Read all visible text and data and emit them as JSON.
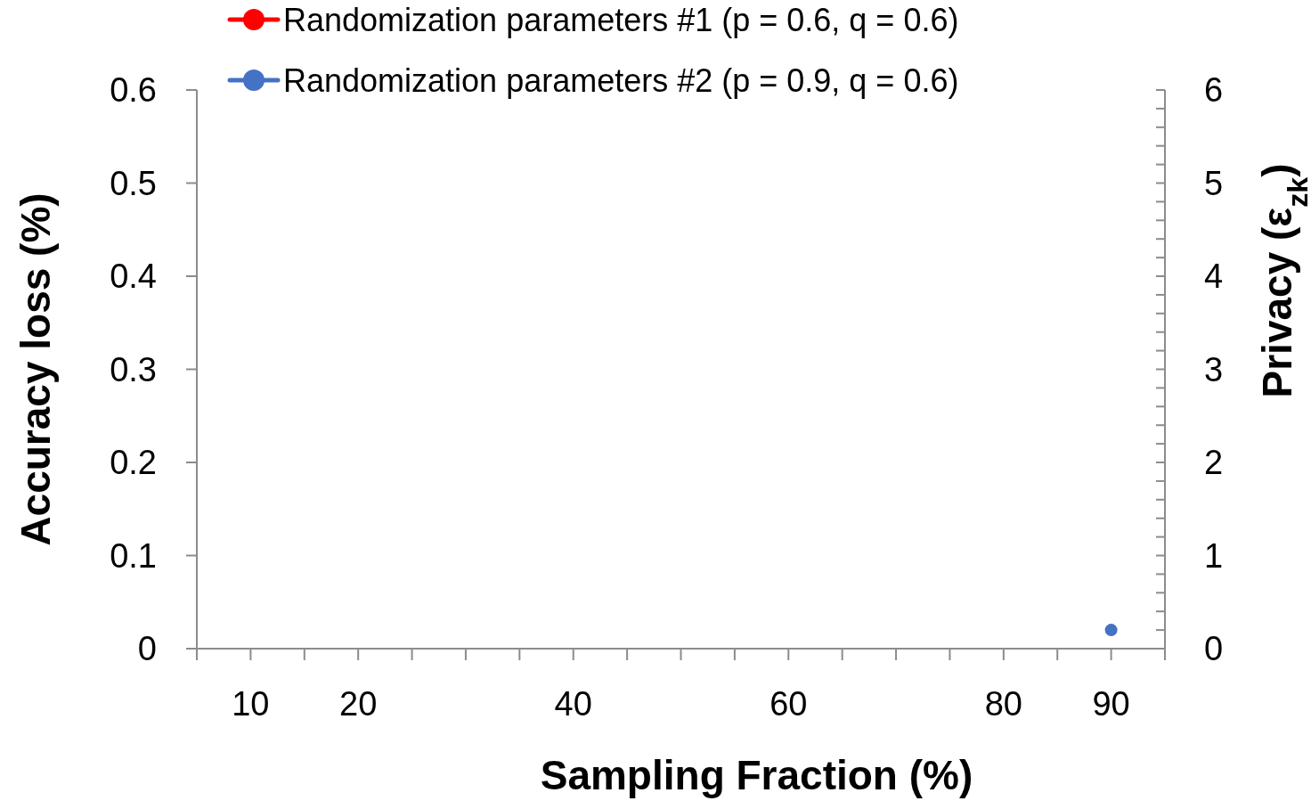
{
  "chart_data": {
    "type": "line",
    "xlabel": "Sampling Fraction (%)",
    "ylabel": "Accuracy loss (%)",
    "y2label": "Privacy  (ε$_{zk}$)",
    "x": [
      90
    ],
    "series": [
      {
        "name": "Randomization parameters #1 (p = 0.6, q = 0.6)",
        "color": "#ff0000",
        "values": [
          null
        ]
      },
      {
        "name": "Randomization parameters #2 (p = 0.9, q = 0.6)",
        "color": "#4472c4",
        "values": [
          0.02
        ]
      }
    ],
    "xlim": [
      5,
      95
    ],
    "xticks": [
      {
        "value": 5,
        "label": null
      },
      10,
      {
        "value": 15,
        "label": null
      },
      20,
      {
        "value": 25,
        "label": null
      },
      {
        "value": 30,
        "label": null
      },
      {
        "value": 35,
        "label": null
      },
      40,
      {
        "value": 45,
        "label": null
      },
      {
        "value": 50,
        "label": null
      },
      {
        "value": 55,
        "label": null
      },
      60,
      {
        "value": 65,
        "label": null
      },
      {
        "value": 70,
        "label": null
      },
      {
        "value": 75,
        "label": null
      },
      80,
      {
        "value": 85,
        "label": null
      },
      90,
      {
        "value": 95,
        "label": null
      }
    ],
    "ylim": [
      0,
      0.6
    ],
    "yticks": [
      {
        "value": 0,
        "label": "0"
      },
      0.1,
      0.2,
      0.3,
      0.4,
      0.5,
      0.6
    ],
    "y2lim": [
      0,
      6
    ],
    "y2ticks": [
      0,
      {
        "value": 0.2,
        "label": null
      },
      {
        "value": 0.4,
        "label": null
      },
      {
        "value": 0.6,
        "label": null
      },
      {
        "value": 0.8,
        "label": null
      },
      1,
      {
        "value": 1.2,
        "label": null
      },
      {
        "value": 1.4,
        "label": null
      },
      {
        "value": 1.6,
        "label": null
      },
      {
        "value": 1.8,
        "label": null
      },
      2,
      {
        "value": 2.2,
        "label": null
      },
      {
        "value": 2.4,
        "label": null
      },
      {
        "value": 2.6,
        "label": null
      },
      {
        "value": 2.8,
        "label": null
      },
      3,
      {
        "value": 3.2,
        "label": null
      },
      {
        "value": 3.4,
        "label": null
      },
      {
        "value": 3.6,
        "label": null
      },
      {
        "value": 3.8,
        "label": null
      },
      4,
      {
        "value": 4.2,
        "label": null
      },
      {
        "value": 4.4,
        "label": null
      },
      {
        "value": 4.6,
        "label": null
      },
      {
        "value": 4.8,
        "label": null
      },
      5,
      {
        "value": 5.2,
        "label": null
      },
      {
        "value": 5.4,
        "label": null
      },
      {
        "value": 5.6,
        "label": null
      },
      {
        "value": 5.8,
        "label": null
      },
      6
    ],
    "legend": "top",
    "marker": "circle",
    "line_style": "solid",
    "grid": false
  }
}
